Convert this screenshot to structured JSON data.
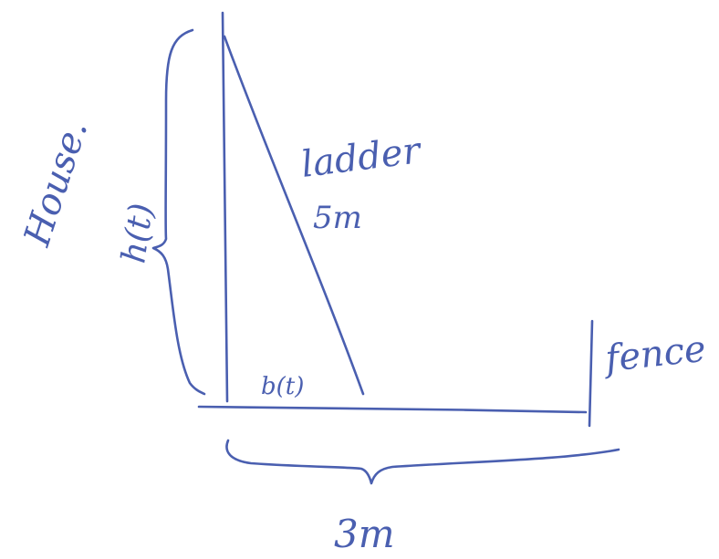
{
  "labels": {
    "house": "House.",
    "height": "h(t)",
    "ladder_title": "ladder",
    "ladder_length": "5m",
    "base": "b(t)",
    "fence": "fence",
    "distance": "3m"
  },
  "colors": {
    "ink": "#4a5fb0",
    "background": "#ffffff"
  }
}
